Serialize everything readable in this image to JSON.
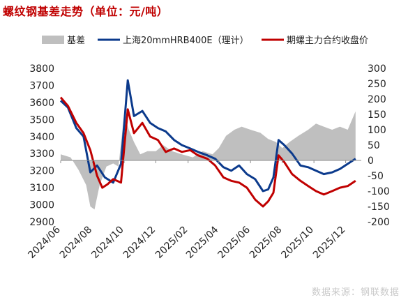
{
  "title": "螺纹钢基差走势（单位：元/吨）",
  "source": "数据来源：钢联数据",
  "colors": {
    "basis": "#bfbfbf",
    "spot": "#0b3a8c",
    "futures": "#c00000"
  },
  "chart_data": {
    "type": "line",
    "legend": [
      "基差",
      "上海20mmHRB400E（理计）",
      "期螺主力合约收盘价"
    ],
    "legend_placement": "top",
    "grid": false,
    "x_ticks": [
      "2024/06",
      "2024/08",
      "2024/10",
      "2024/12",
      "2025/02",
      "2025/04",
      "2025/06",
      "2025/08",
      "2025/10",
      "2025/12"
    ],
    "x_range": [
      "2024/06/01",
      "2025/12/31"
    ],
    "y_left": {
      "min": 2900,
      "max": 3800,
      "ticks": [
        "2900",
        "3000",
        "3100",
        "3200",
        "3300",
        "3400",
        "3500",
        "3600",
        "3700",
        "3800"
      ]
    },
    "y_right": {
      "min": -200,
      "max": 300,
      "ticks": [
        "-200",
        "-150",
        "-100",
        "-50",
        "0",
        "50",
        "100",
        "150",
        "200",
        "250",
        "300"
      ]
    },
    "series": [
      {
        "name": "基差",
        "kind": "area",
        "axis": "right",
        "points": [
          [
            "2024/06/01",
            20
          ],
          [
            "2024/06/20",
            10
          ],
          [
            "2024/07/05",
            -30
          ],
          [
            "2024/07/20",
            -80
          ],
          [
            "2024/07/28",
            -150
          ],
          [
            "2024/08/05",
            -160
          ],
          [
            "2024/08/15",
            -80
          ],
          [
            "2024/08/28",
            -20
          ],
          [
            "2024/09/10",
            -10
          ],
          [
            "2024/09/20",
            -20
          ],
          [
            "2024/10/01",
            150
          ],
          [
            "2024/10/10",
            100
          ],
          [
            "2024/10/20",
            60
          ],
          [
            "2024/11/01",
            20
          ],
          [
            "2024/11/15",
            30
          ],
          [
            "2024/12/01",
            30
          ],
          [
            "2024/12/15",
            50
          ],
          [
            "2025/01/01",
            30
          ],
          [
            "2025/01/20",
            20
          ],
          [
            "2025/02/10",
            10
          ],
          [
            "2025/03/01",
            30
          ],
          [
            "2025/03/20",
            20
          ],
          [
            "2025/04/01",
            40
          ],
          [
            "2025/04/15",
            80
          ],
          [
            "2025/05/01",
            100
          ],
          [
            "2025/05/15",
            110
          ],
          [
            "2025/06/01",
            100
          ],
          [
            "2025/06/20",
            90
          ],
          [
            "2025/07/05",
            70
          ],
          [
            "2025/07/20",
            60
          ],
          [
            "2025/08/01",
            40
          ],
          [
            "2025/08/15",
            60
          ],
          [
            "2025/09/01",
            80
          ],
          [
            "2025/09/20",
            100
          ],
          [
            "2025/10/05",
            120
          ],
          [
            "2025/10/20",
            110
          ],
          [
            "2025/11/05",
            100
          ],
          [
            "2025/11/20",
            110
          ],
          [
            "2025/12/05",
            100
          ],
          [
            "2025/12/20",
            160
          ]
        ]
      },
      {
        "name": "上海20mmHRB400E（理计）",
        "kind": "line",
        "axis": "left",
        "points": [
          [
            "2024/06/01",
            3610
          ],
          [
            "2024/06/15",
            3570
          ],
          [
            "2024/07/01",
            3450
          ],
          [
            "2024/07/15",
            3400
          ],
          [
            "2024/07/28",
            3190
          ],
          [
            "2024/08/10",
            3230
          ],
          [
            "2024/08/25",
            3160
          ],
          [
            "2024/09/10",
            3130
          ],
          [
            "2024/09/25",
            3240
          ],
          [
            "2024/10/08",
            3730
          ],
          [
            "2024/10/20",
            3520
          ],
          [
            "2024/11/05",
            3550
          ],
          [
            "2024/11/20",
            3480
          ],
          [
            "2024/12/05",
            3450
          ],
          [
            "2024/12/20",
            3430
          ],
          [
            "2025/01/05",
            3380
          ],
          [
            "2025/01/20",
            3350
          ],
          [
            "2025/02/05",
            3330
          ],
          [
            "2025/02/20",
            3310
          ],
          [
            "2025/03/10",
            3290
          ],
          [
            "2025/03/25",
            3270
          ],
          [
            "2025/04/10",
            3220
          ],
          [
            "2025/04/25",
            3200
          ],
          [
            "2025/05/10",
            3230
          ],
          [
            "2025/05/25",
            3180
          ],
          [
            "2025/06/10",
            3150
          ],
          [
            "2025/06/25",
            3080
          ],
          [
            "2025/07/05",
            3090
          ],
          [
            "2025/07/15",
            3160
          ],
          [
            "2025/07/25",
            3380
          ],
          [
            "2025/08/05",
            3350
          ],
          [
            "2025/08/20",
            3300
          ],
          [
            "2025/09/05",
            3230
          ],
          [
            "2025/09/20",
            3220
          ],
          [
            "2025/10/05",
            3200
          ],
          [
            "2025/10/20",
            3180
          ],
          [
            "2025/11/05",
            3190
          ],
          [
            "2025/11/20",
            3210
          ],
          [
            "2025/12/05",
            3240
          ],
          [
            "2025/12/20",
            3270
          ]
        ]
      },
      {
        "name": "期螺主力合约收盘价",
        "kind": "line",
        "axis": "left",
        "points": [
          [
            "2024/06/01",
            3630
          ],
          [
            "2024/06/15",
            3580
          ],
          [
            "2024/07/01",
            3480
          ],
          [
            "2024/07/15",
            3420
          ],
          [
            "2024/07/28",
            3320
          ],
          [
            "2024/08/10",
            3170
          ],
          [
            "2024/08/20",
            3100
          ],
          [
            "2024/08/30",
            3120
          ],
          [
            "2024/09/10",
            3150
          ],
          [
            "2024/09/25",
            3130
          ],
          [
            "2024/10/08",
            3560
          ],
          [
            "2024/10/20",
            3420
          ],
          [
            "2024/11/05",
            3480
          ],
          [
            "2024/11/20",
            3400
          ],
          [
            "2024/12/05",
            3380
          ],
          [
            "2024/12/20",
            3310
          ],
          [
            "2025/01/05",
            3330
          ],
          [
            "2025/01/20",
            3310
          ],
          [
            "2025/02/05",
            3320
          ],
          [
            "2025/02/20",
            3290
          ],
          [
            "2025/03/10",
            3270
          ],
          [
            "2025/03/25",
            3230
          ],
          [
            "2025/04/10",
            3160
          ],
          [
            "2025/04/25",
            3140
          ],
          [
            "2025/05/10",
            3130
          ],
          [
            "2025/05/25",
            3100
          ],
          [
            "2025/06/10",
            3030
          ],
          [
            "2025/06/25",
            2990
          ],
          [
            "2025/07/05",
            3020
          ],
          [
            "2025/07/15",
            3070
          ],
          [
            "2025/07/25",
            3290
          ],
          [
            "2025/08/05",
            3250
          ],
          [
            "2025/08/20",
            3180
          ],
          [
            "2025/09/05",
            3140
          ],
          [
            "2025/09/20",
            3110
          ],
          [
            "2025/10/05",
            3080
          ],
          [
            "2025/10/20",
            3060
          ],
          [
            "2025/11/05",
            3080
          ],
          [
            "2025/11/20",
            3100
          ],
          [
            "2025/12/05",
            3110
          ],
          [
            "2025/12/20",
            3140
          ]
        ]
      }
    ]
  }
}
